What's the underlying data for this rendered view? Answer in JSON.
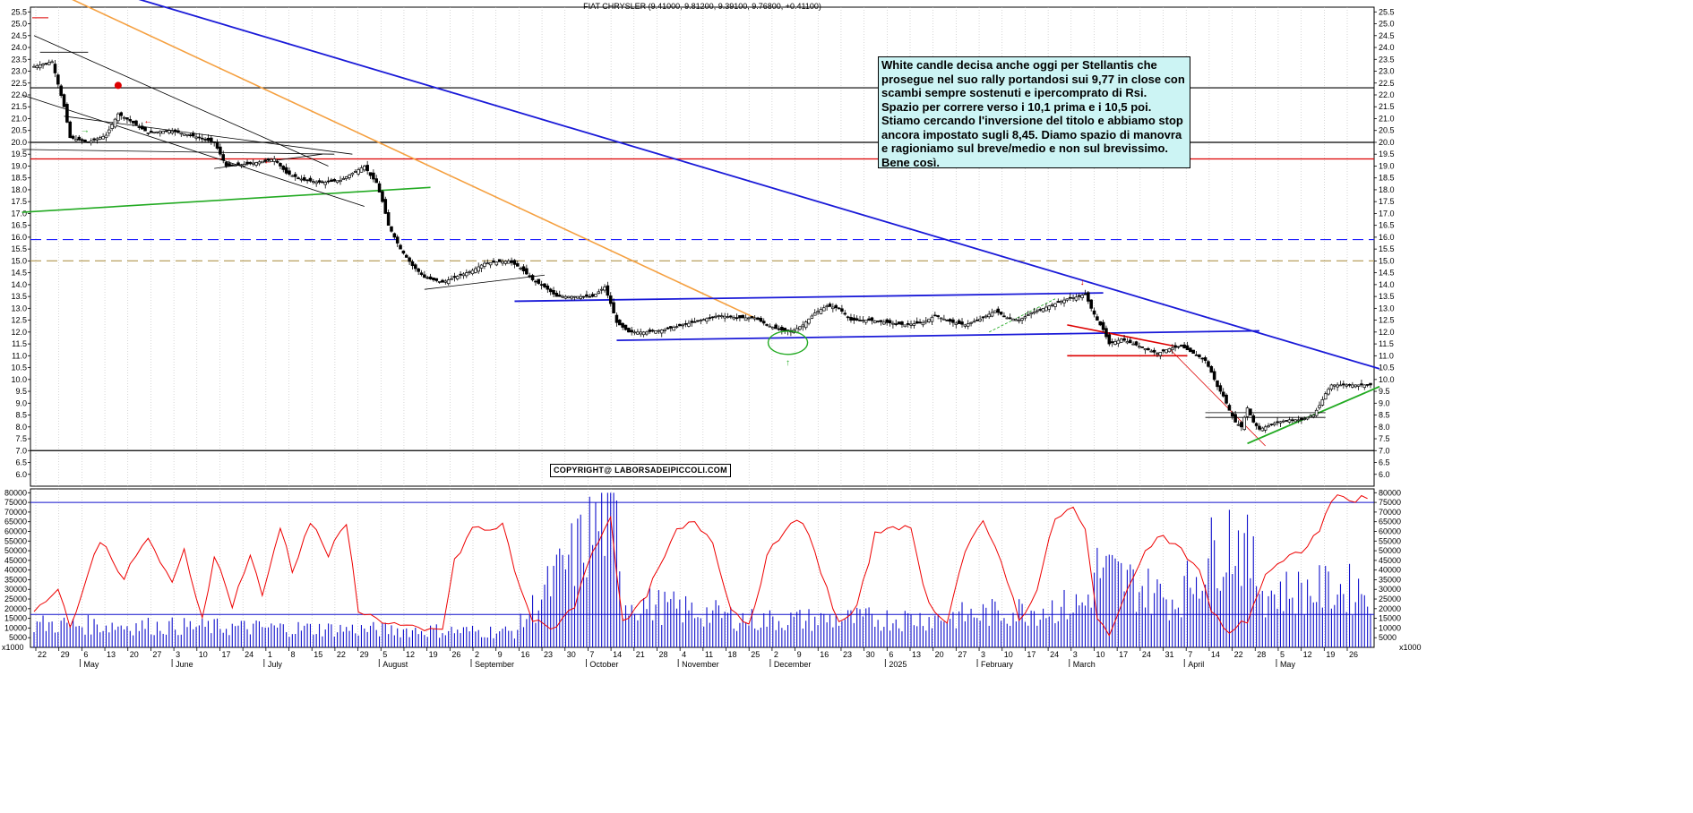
{
  "chart_data": {
    "type": "candlestick",
    "title": "FIAT CHRYSLER (9.41000, 9.81200, 9.39100, 9.76800, +0.41100)",
    "price_axis": {
      "ylim": [
        5.5,
        25.7
      ],
      "ticks": [
        "6.0",
        "6.5",
        "7.0",
        "7.5",
        "8.0",
        "8.5",
        "9.0",
        "9.5",
        "10.0",
        "10.5",
        "11.0",
        "11.5",
        "12.0",
        "12.5",
        "13.0",
        "13.5",
        "14.0",
        "14.5",
        "15.0",
        "15.5",
        "16.0",
        "16.5",
        "17.0",
        "17.5",
        "18.0",
        "18.5",
        "19.0",
        "19.5",
        "20.0",
        "20.5",
        "21.0",
        "21.5",
        "22.0",
        "22.5",
        "23.0",
        "23.5",
        "24.0",
        "24.5",
        "25.0",
        "25.5"
      ]
    },
    "volume_axis": {
      "ylim": [
        0,
        82000
      ],
      "ticks": [
        "5000",
        "10000",
        "15000",
        "20000",
        "25000",
        "30000",
        "35000",
        "40000",
        "45000",
        "50000",
        "55000",
        "60000",
        "65000",
        "70000",
        "75000",
        "80000"
      ],
      "unit_label": "x1000"
    },
    "x_day_labels": [
      "22",
      "29",
      "6",
      "13",
      "20",
      "27",
      "3",
      "10",
      "17",
      "24",
      "1",
      "8",
      "15",
      "22",
      "29",
      "5",
      "12",
      "19",
      "26",
      "2",
      "9",
      "16",
      "23",
      "30",
      "7",
      "14",
      "21",
      "28",
      "4",
      "11",
      "18",
      "25",
      "2",
      "9",
      "16",
      "23",
      "30",
      "6",
      "13",
      "20",
      "27",
      "3",
      "10",
      "17",
      "24",
      "3",
      "10",
      "17",
      "24",
      "31",
      "7",
      "14",
      "22",
      "28",
      "5",
      "12",
      "19",
      "26"
    ],
    "x_month_labels": [
      "May",
      "June",
      "July",
      "August",
      "September",
      "October",
      "November",
      "December",
      "2025",
      "February",
      "March",
      "April",
      "May"
    ],
    "horizontal_levels": [
      {
        "name": "resistance-22.3",
        "value": 22.3,
        "color": "#000000",
        "style": "solid"
      },
      {
        "name": "level-20.0",
        "value": 20.0,
        "color": "#000000",
        "style": "solid"
      },
      {
        "name": "red-19.3",
        "value": 19.3,
        "color": "#dd0000",
        "style": "solid"
      },
      {
        "name": "blue-15.9",
        "value": 15.9,
        "color": "#1f1fff",
        "style": "dashed"
      },
      {
        "name": "olive-15.0",
        "value": 15.0,
        "color": "#b8a060",
        "style": "dashed"
      },
      {
        "name": "support-7.0",
        "value": 7.0,
        "color": "#000000",
        "style": "solid"
      }
    ],
    "volume_reference": 75000,
    "volume_baseline": 17000,
    "price_keypoints": [
      [
        0,
        23.2
      ],
      [
        6,
        23.4
      ],
      [
        10,
        21.5
      ],
      [
        12,
        20.2
      ],
      [
        18,
        20.0
      ],
      [
        24,
        20.3
      ],
      [
        28,
        21.2
      ],
      [
        32,
        20.9
      ],
      [
        38,
        20.4
      ],
      [
        45,
        20.5
      ],
      [
        52,
        20.3
      ],
      [
        60,
        20.0
      ],
      [
        64,
        19.0
      ],
      [
        72,
        19.1
      ],
      [
        80,
        19.3
      ],
      [
        84,
        18.7
      ],
      [
        90,
        18.4
      ],
      [
        96,
        18.3
      ],
      [
        102,
        18.4
      ],
      [
        106,
        18.7
      ],
      [
        110,
        19.0
      ],
      [
        112,
        18.6
      ],
      [
        114,
        18.3
      ],
      [
        116,
        17.5
      ],
      [
        118,
        16.5
      ],
      [
        120,
        16.0
      ],
      [
        122,
        15.5
      ],
      [
        126,
        14.8
      ],
      [
        130,
        14.3
      ],
      [
        136,
        14.1
      ],
      [
        140,
        14.3
      ],
      [
        146,
        14.6
      ],
      [
        150,
        14.9
      ],
      [
        158,
        15.0
      ],
      [
        162,
        14.7
      ],
      [
        166,
        14.2
      ],
      [
        170,
        13.9
      ],
      [
        174,
        13.5
      ],
      [
        180,
        13.5
      ],
      [
        186,
        13.5
      ],
      [
        190,
        13.9
      ],
      [
        192,
        13.2
      ],
      [
        194,
        12.4
      ],
      [
        198,
        12.0
      ],
      [
        204,
        12.0
      ],
      [
        210,
        12.1
      ],
      [
        216,
        12.3
      ],
      [
        222,
        12.5
      ],
      [
        228,
        12.7
      ],
      [
        234,
        12.6
      ],
      [
        240,
        12.6
      ],
      [
        244,
        12.3
      ],
      [
        248,
        12.1
      ],
      [
        252,
        12.0
      ],
      [
        256,
        12.3
      ],
      [
        260,
        12.8
      ],
      [
        264,
        13.1
      ],
      [
        268,
        13.0
      ],
      [
        272,
        12.5
      ],
      [
        278,
        12.5
      ],
      [
        284,
        12.4
      ],
      [
        290,
        12.3
      ],
      [
        296,
        12.4
      ],
      [
        300,
        12.7
      ],
      [
        306,
        12.4
      ],
      [
        310,
        12.3
      ],
      [
        316,
        12.6
      ],
      [
        320,
        12.9
      ],
      [
        324,
        12.6
      ],
      [
        328,
        12.5
      ],
      [
        332,
        12.8
      ],
      [
        336,
        13.0
      ],
      [
        340,
        13.2
      ],
      [
        344,
        13.4
      ],
      [
        348,
        13.5
      ],
      [
        350,
        13.6
      ],
      [
        352,
        13.0
      ],
      [
        354,
        12.5
      ],
      [
        356,
        12.1
      ],
      [
        358,
        11.5
      ],
      [
        362,
        11.7
      ],
      [
        366,
        11.5
      ],
      [
        370,
        11.3
      ],
      [
        374,
        11.1
      ],
      [
        378,
        11.3
      ],
      [
        382,
        11.4
      ],
      [
        386,
        11.1
      ],
      [
        390,
        10.8
      ],
      [
        392,
        10.3
      ],
      [
        394,
        9.7
      ],
      [
        396,
        9.3
      ],
      [
        398,
        8.7
      ],
      [
        400,
        8.2
      ],
      [
        402,
        8.0
      ],
      [
        404,
        8.8
      ],
      [
        406,
        8.2
      ],
      [
        408,
        7.9
      ],
      [
        410,
        8.0
      ],
      [
        414,
        8.2
      ],
      [
        418,
        8.3
      ],
      [
        422,
        8.3
      ],
      [
        426,
        8.5
      ],
      [
        428,
        8.9
      ],
      [
        430,
        9.4
      ],
      [
        432,
        9.77
      ]
    ],
    "volume_keypoints": [
      [
        0,
        12000
      ],
      [
        80,
        10000
      ],
      [
        160,
        8000
      ],
      [
        194,
        76000
      ],
      [
        196,
        24000
      ],
      [
        240,
        14000
      ],
      [
        300,
        15000
      ],
      [
        350,
        22000
      ],
      [
        354,
        40000
      ],
      [
        380,
        24000
      ],
      [
        392,
        48000
      ],
      [
        398,
        58000
      ],
      [
        402,
        54000
      ],
      [
        410,
        28000
      ],
      [
        432,
        30000
      ]
    ],
    "rsi_keypoints": [
      [
        0,
        17000
      ],
      [
        8,
        32000
      ],
      [
        12,
        10000
      ],
      [
        22,
        56000
      ],
      [
        30,
        36000
      ],
      [
        38,
        57000
      ],
      [
        46,
        32000
      ],
      [
        50,
        50000
      ],
      [
        56,
        15000
      ],
      [
        60,
        48000
      ],
      [
        66,
        22000
      ],
      [
        72,
        48000
      ],
      [
        76,
        26000
      ],
      [
        82,
        63000
      ],
      [
        86,
        40000
      ],
      [
        92,
        65000
      ],
      [
        98,
        48000
      ],
      [
        104,
        64000
      ],
      [
        108,
        20000
      ],
      [
        112,
        16000
      ],
      [
        120,
        12000
      ],
      [
        130,
        8000
      ],
      [
        136,
        10000
      ],
      [
        140,
        44000
      ],
      [
        146,
        62000
      ],
      [
        152,
        60000
      ],
      [
        156,
        64000
      ],
      [
        160,
        40000
      ],
      [
        166,
        14000
      ],
      [
        172,
        9000
      ],
      [
        180,
        22000
      ],
      [
        186,
        50000
      ],
      [
        192,
        68000
      ],
      [
        196,
        12000
      ],
      [
        202,
        22000
      ],
      [
        208,
        40000
      ],
      [
        214,
        60000
      ],
      [
        220,
        65000
      ],
      [
        226,
        55000
      ],
      [
        232,
        20000
      ],
      [
        238,
        12000
      ],
      [
        244,
        46000
      ],
      [
        250,
        62000
      ],
      [
        256,
        65000
      ],
      [
        262,
        40000
      ],
      [
        268,
        12000
      ],
      [
        274,
        20000
      ],
      [
        280,
        58000
      ],
      [
        286,
        64000
      ],
      [
        292,
        60000
      ],
      [
        298,
        22000
      ],
      [
        304,
        14000
      ],
      [
        310,
        50000
      ],
      [
        316,
        64000
      ],
      [
        322,
        46000
      ],
      [
        328,
        14000
      ],
      [
        334,
        30000
      ],
      [
        340,
        67000
      ],
      [
        346,
        72000
      ],
      [
        350,
        60000
      ],
      [
        354,
        14000
      ],
      [
        358,
        8000
      ],
      [
        364,
        28000
      ],
      [
        370,
        52000
      ],
      [
        376,
        58000
      ],
      [
        382,
        50000
      ],
      [
        388,
        40000
      ],
      [
        392,
        18000
      ],
      [
        398,
        8000
      ],
      [
        404,
        14000
      ],
      [
        410,
        38000
      ],
      [
        416,
        44000
      ],
      [
        422,
        50000
      ],
      [
        428,
        60000
      ],
      [
        432,
        77000
      ]
    ],
    "annotation_text": "White candle decisa anche oggi per Stellantis che prosegue nel suo rally portandosi sui 9,77 in close con scambi sempre sostenuti e ipercomprato di Rsi.\nSpazio per correre verso i 10,1 prima e i 10,5 poi.\nStiamo cercando l'inversione del titolo e abbiamo stop ancora impostato sugli 8,45. Diamo spazio di manovra e ragioniamo sul breve/medio e non sul brevissimo.\nBene così.",
    "copyright": "COPYRIGHT@ LABORSADEIPICCOLI.COM",
    "grid": true
  },
  "colors": {
    "up_candle": "#ffffff",
    "down_candle": "#000000",
    "rsi": "#ee0000",
    "volume": "#1010cc",
    "trend_blue": "#1a1ad8",
    "trend_orange": "#f5a040",
    "trend_green": "#22aa22",
    "trend_red": "#dd0000",
    "note_bg": "#ccf4f4"
  }
}
